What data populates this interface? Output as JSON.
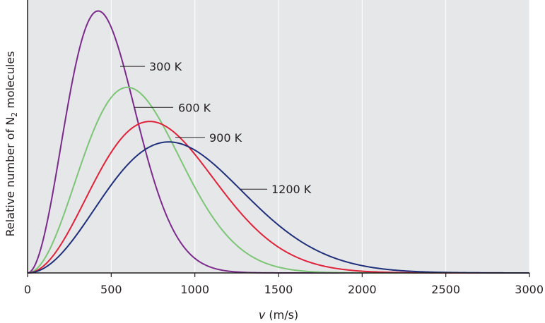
{
  "chart_data": {
    "type": "line",
    "title": "",
    "xlabel": {
      "var": "v",
      "unit": " (m/s)"
    },
    "ylabel": {
      "prefix": "Relative number of N",
      "sub": "2",
      "suffix": " molecules"
    },
    "xlim": [
      0,
      3000
    ],
    "ylim": [
      0,
      1
    ],
    "x_ticks": [
      0,
      500,
      1000,
      1500,
      2000,
      2500,
      3000
    ],
    "x_tick_labels": [
      "0",
      "500",
      "1000",
      "1500",
      "2000",
      "2500",
      "3000"
    ],
    "y_ticks_shown": false,
    "grid": {
      "vertical": true,
      "horizontal": false,
      "color": "#ffffff"
    },
    "background": "#e6e7e8",
    "series": [
      {
        "name": "300 K",
        "temperature_K": 300,
        "peak_x": 422,
        "peak_y": 0.96,
        "color": "#7b2a8c"
      },
      {
        "name": "600 K",
        "temperature_K": 600,
        "peak_x": 597,
        "peak_y": 0.68,
        "color": "#7cc576"
      },
      {
        "name": "900 K",
        "temperature_K": 900,
        "peak_x": 731,
        "peak_y": 0.555,
        "color": "#e0213a"
      },
      {
        "name": "1200 K",
        "temperature_K": 1200,
        "peak_x": 844,
        "peak_y": 0.48,
        "color": "#1f2f7a"
      }
    ]
  },
  "colors": {
    "axis": "#231f20",
    "leader_line": "#231f20"
  }
}
